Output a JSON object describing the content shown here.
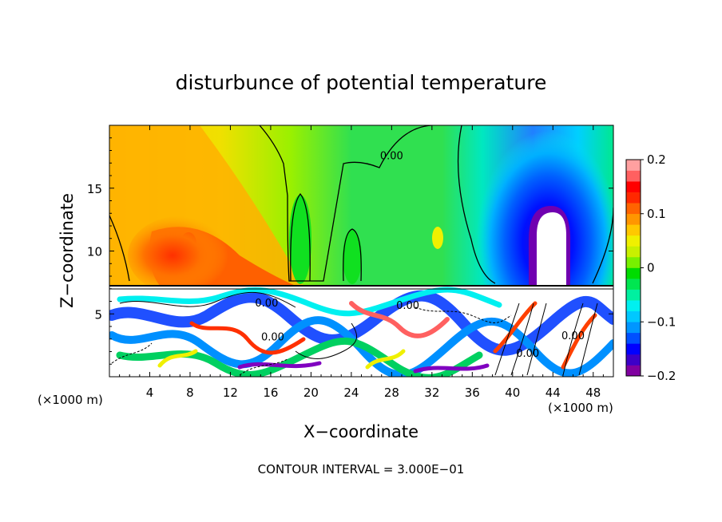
{
  "chart_data": {
    "type": "heatmap",
    "title": "disturbunce of potential temperature",
    "xlabel": "X−coordinate",
    "ylabel": "Z−coordinate",
    "x_unit_left": "(×1000 m)",
    "x_unit_right": "(×1000 m)",
    "footer": "CONTOUR INTERVAL = 3.000E−01",
    "xlim": [
      0,
      50
    ],
    "ylim": [
      0,
      20
    ],
    "x_ticks": [
      4,
      8,
      12,
      16,
      20,
      24,
      28,
      32,
      36,
      40,
      44,
      48
    ],
    "x_tick_labels": [
      "4",
      "8",
      "12",
      "16",
      "20",
      "24",
      "28",
      "32",
      "36",
      "40",
      "44",
      "48"
    ],
    "y_ticks": [
      5,
      10,
      15
    ],
    "y_tick_labels": [
      "5",
      "10",
      "15"
    ],
    "contour_labels": [
      {
        "text": "0.00",
        "x": 28,
        "y": 17.3
      },
      {
        "text": "0.00",
        "x": 15.6,
        "y": 5.6
      },
      {
        "text": "0.00",
        "x": 16.2,
        "y": 2.9
      },
      {
        "text": "0.00",
        "x": 29.6,
        "y": 5.4
      },
      {
        "text": "0.00",
        "x": 46.0,
        "y": 3.0
      },
      {
        "text": "0.00",
        "x": 41.5,
        "y": 1.6
      }
    ],
    "colorbar": {
      "min": -0.2,
      "max": 0.2,
      "ticks": [
        0.2,
        0.1,
        0,
        -0.1,
        -0.2
      ],
      "tick_labels": [
        "0.2",
        "0.1",
        "0",
        "−0.1",
        "−0.2"
      ],
      "colors": [
        "#8000a0",
        "#3c00c8",
        "#0000ff",
        "#0050ff",
        "#0096ff",
        "#00c8ff",
        "#00f0f0",
        "#00f0a0",
        "#00e650",
        "#00dc00",
        "#78f000",
        "#c8f000",
        "#f0f000",
        "#ffc800",
        "#ff9600",
        "#ff6400",
        "#ff2800",
        "#ff0000",
        "#ff6060",
        "#ffa0a0"
      ]
    }
  }
}
